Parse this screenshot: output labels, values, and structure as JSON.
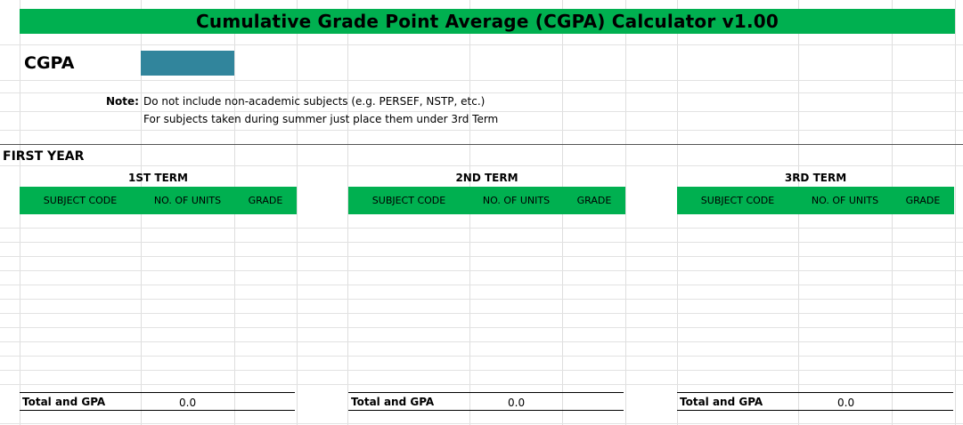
{
  "title": "Cumulative Grade Point Average (CGPA) Calculator v1.00",
  "cgpa_label": "CGPA",
  "note": {
    "label": "Note:",
    "line1": "Do not include non-academic subjects (e.g. PERSEF, NSTP, etc.)",
    "line2": "For subjects taken during summer just place them under 3rd Term"
  },
  "year_label": "FIRST YEAR",
  "terms": [
    {
      "title": "1ST TERM",
      "col_subject": "SUBJECT CODE",
      "col_units": "NO. OF UNITS",
      "col_grade": "GRADE",
      "total_label": "Total and GPA",
      "total_value": "0.0"
    },
    {
      "title": "2ND TERM",
      "col_subject": "SUBJECT CODE",
      "col_units": "NO. OF UNITS",
      "col_grade": "GRADE",
      "total_label": "Total and GPA",
      "total_value": "0.0"
    },
    {
      "title": "3RD TERM",
      "col_subject": "SUBJECT CODE",
      "col_units": "NO. OF UNITS",
      "col_grade": "GRADE",
      "total_label": "Total and GPA",
      "total_value": "0.0"
    }
  ],
  "colors": {
    "header_green": "#00b050",
    "cgpa_cell": "#31859c"
  }
}
